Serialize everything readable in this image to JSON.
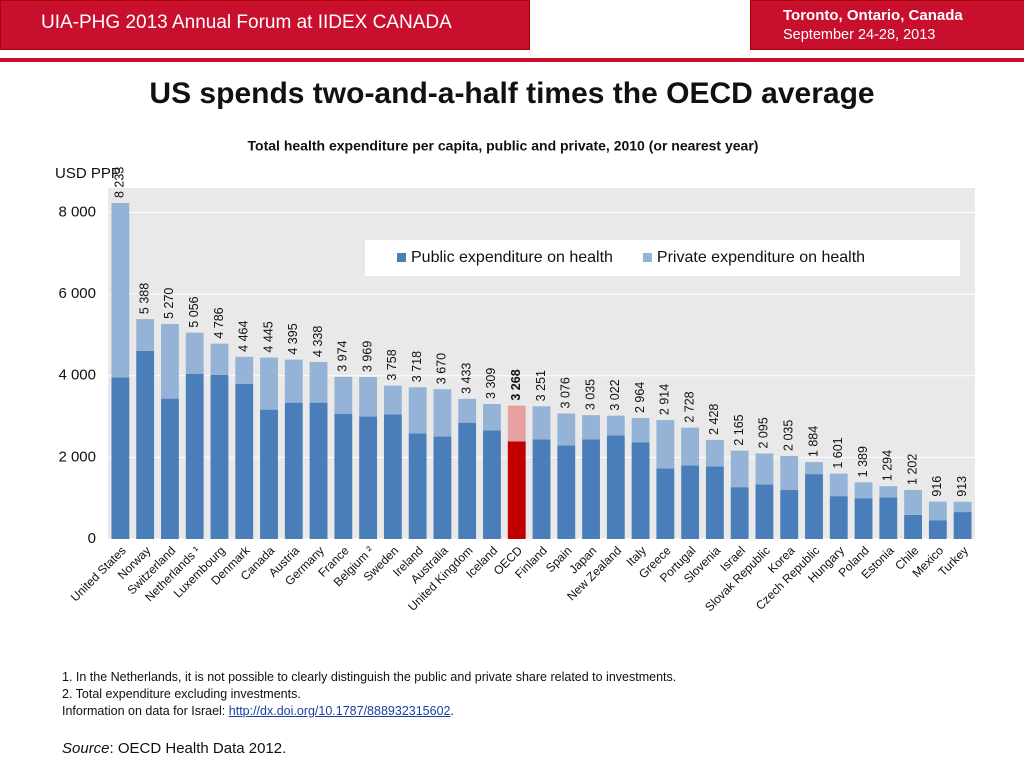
{
  "header": {
    "event": "UIA-PHG 2013 Annual Forum at IIDEX CANADA",
    "place": "Toronto, Ontario, Canada",
    "dates": "September 24-28, 2013"
  },
  "slide_title": "US spends two-and-a-half times the OECD average",
  "chart_data": {
    "type": "stacked_bar",
    "title": "Total health expenditure per capita, public and private, 2010 (or nearest year)",
    "y_label": "USD PPP",
    "categories": [
      "United States",
      "Norway",
      "Switzerland",
      "Netherlands ¹",
      "Luxembourg",
      "Denmark",
      "Canada",
      "Austria",
      "Germany",
      "France",
      "Belgium ²",
      "Sweden",
      "Ireland",
      "Australia",
      "United Kingdom",
      "Iceland",
      "OECD",
      "Finland",
      "Spain",
      "Japan",
      "New Zealand",
      "Italy",
      "Greece",
      "Portugal",
      "Slovenia",
      "Israel",
      "Slovak Republic",
      "Korea",
      "Czech Republic",
      "Hungary",
      "Poland",
      "Estonia",
      "Chile",
      "Mexico",
      "Turkey"
    ],
    "series": [
      {
        "name": "Public expenditure on health",
        "color": "#4a7ebb",
        "values": [
          3960,
          4610,
          3440,
          4050,
          4020,
          3800,
          3170,
          3340,
          3340,
          3070,
          3000,
          3050,
          2590,
          2510,
          2850,
          2660,
          2390,
          2440,
          2290,
          2440,
          2540,
          2370,
          1730,
          1800,
          1780,
          1270,
          1340,
          1200,
          1590,
          1050,
          1000,
          1020,
          590,
          460,
          660
        ]
      },
      {
        "name": "Private expenditure on health",
        "color": "#95b3d7",
        "values": [
          4273,
          778,
          1830,
          1006,
          766,
          664,
          1275,
          1055,
          998,
          904,
          969,
          708,
          1128,
          1160,
          583,
          649,
          878,
          811,
          786,
          595,
          482,
          594,
          1184,
          928,
          648,
          895,
          755,
          835,
          294,
          551,
          389,
          274,
          612,
          456,
          253
        ]
      }
    ],
    "totals": [
      8233,
      5388,
      5270,
      5056,
      4786,
      4464,
      4445,
      4395,
      4338,
      3974,
      3969,
      3758,
      3718,
      3670,
      3433,
      3309,
      3268,
      3251,
      3076,
      3035,
      3022,
      2964,
      2914,
      2728,
      2428,
      2165,
      2095,
      2035,
      1884,
      1601,
      1389,
      1294,
      1202,
      916,
      913
    ],
    "total_labels": [
      "8 233",
      "5 388",
      "5 270",
      "5 056",
      "4 786",
      "4 464",
      "4 445",
      "4 395",
      "4 338",
      "3 974",
      "3 969",
      "3 758",
      "3 718",
      "3 670",
      "3 433",
      "3 309",
      "3 268",
      "3 251",
      "3 076",
      "3 035",
      "3 022",
      "2 964",
      "2 914",
      "2 728",
      "2 428",
      "2 165",
      "2 095",
      "2 035",
      "1 884",
      "1 601",
      "1 389",
      "1 294",
      "1 202",
      "916",
      "913"
    ],
    "highlight": {
      "category": "OECD",
      "colors": [
        "#c00000",
        "#e6a0a0"
      ]
    },
    "ylim": [
      0,
      8600
    ],
    "yticks": [
      0,
      {
        "value": 2000,
        "label": "2 000"
      },
      {
        "value": 4000,
        "label": "4 000"
      },
      {
        "value": 6000,
        "label": "6 000"
      },
      {
        "value": 8000,
        "label": "8 000"
      }
    ],
    "grid": true,
    "legend": "top-right"
  },
  "footer": {
    "note1": "1.  In the Netherlands, it is not possible to clearly distinguish the public and private share related to investments.",
    "note2": "2.  Total expenditure excluding investments.",
    "israel_note": "Information on data for Israel:",
    "israel_link": "http://dx.doi.org/10.1787/888932315602",
    "israel_end": ".",
    "source_label": "Source",
    "source_text": ": OECD Health Data 2012."
  }
}
